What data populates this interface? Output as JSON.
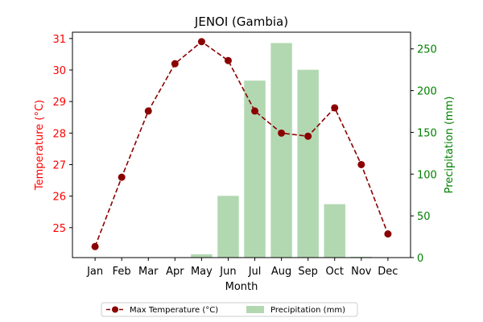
{
  "chart_data": {
    "type": "bar+line",
    "title": "JENOI (Gambia)",
    "xlabel": "Month",
    "categories": [
      "Jan",
      "Feb",
      "Mar",
      "Apr",
      "May",
      "Jun",
      "Jul",
      "Aug",
      "Sep",
      "Oct",
      "Nov",
      "Dec"
    ],
    "y_left": {
      "label": "Temperature (°C)",
      "range": [
        24.05,
        31.2
      ],
      "ticks": [
        25,
        26,
        27,
        28,
        29,
        30,
        31
      ],
      "color": "#ff0000"
    },
    "y_right": {
      "label": "Precipitation (mm)",
      "range": [
        0,
        270
      ],
      "ticks": [
        0,
        50,
        100,
        150,
        200,
        250
      ],
      "color": "#008000"
    },
    "series": [
      {
        "name": "Max Temperature (°C)",
        "type": "line",
        "axis": "left",
        "color": "#8b0000",
        "style": "dashed",
        "marker": "circle",
        "values": [
          24.4,
          26.6,
          28.7,
          30.2,
          30.9,
          30.3,
          28.7,
          28.0,
          27.9,
          28.8,
          27.0,
          24.8
        ]
      },
      {
        "name": "Precipitation (mm)",
        "type": "bar",
        "axis": "right",
        "color": "#b2d8b2",
        "values": [
          0,
          0,
          0,
          0,
          4,
          74,
          212,
          257,
          225,
          64,
          1,
          0
        ]
      }
    ],
    "grid": false,
    "legend_position": "bottom-center"
  }
}
